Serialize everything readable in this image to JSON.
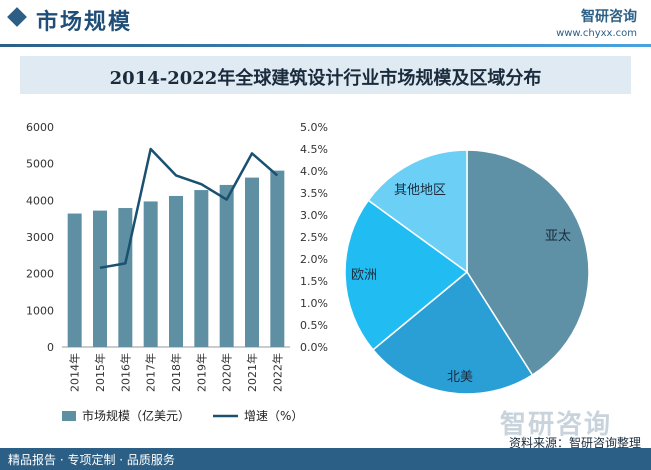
{
  "header": {
    "section_title": "市场规模",
    "brand_name": "智研咨询",
    "brand_url": "www.chyxx.com"
  },
  "chart_title": "2014-2022年全球建筑设计行业市场规模及区域分布",
  "chart_data": [
    {
      "type": "bar",
      "categories": [
        "2014年",
        "2015年",
        "2016年",
        "2017年",
        "2018年",
        "2019年",
        "2020年",
        "2021年",
        "2022年"
      ],
      "series": [
        {
          "name": "市场规模（亿美元）",
          "type": "bar",
          "axis": "left",
          "color": "#5e8fa3",
          "values": [
            3640,
            3720,
            3790,
            3970,
            4120,
            4280,
            4420,
            4620,
            4810
          ]
        },
        {
          "name": "增速（%）",
          "type": "line",
          "axis": "right",
          "color": "#1a5070",
          "values": [
            null,
            1.8,
            1.9,
            4.5,
            3.9,
            3.7,
            3.35,
            4.4,
            3.9
          ]
        }
      ],
      "y_left": {
        "ylim": [
          0,
          6000
        ],
        "ticks": [
          "0",
          "1000",
          "2000",
          "3000",
          "4000",
          "5000",
          "6000"
        ]
      },
      "y_right": {
        "ylim": [
          0,
          5.0
        ],
        "ticks": [
          "0.0%",
          "0.5%",
          "1.0%",
          "1.5%",
          "2.0%",
          "2.5%",
          "3.0%",
          "3.5%",
          "4.0%",
          "4.5%",
          "5.0%"
        ]
      },
      "legend": {
        "placement": "bottom",
        "items": [
          "市场规模（亿美元）",
          "增速（%）"
        ]
      }
    },
    {
      "type": "pie",
      "slices": [
        {
          "label": "亚太",
          "value": 41,
          "color": "#5e91a5"
        },
        {
          "label": "北美",
          "value": 23,
          "color": "#2a9fd6"
        },
        {
          "label": "欧洲",
          "value": 21,
          "color": "#21bdf2"
        },
        {
          "label": "其他地区",
          "value": 15,
          "color": "#6ccff6"
        }
      ]
    }
  ],
  "footer": {
    "left_text": "精品报告 · 专项定制 · 品质服务",
    "source": "资料来源：智研咨询整理",
    "watermark": "智研咨询"
  }
}
